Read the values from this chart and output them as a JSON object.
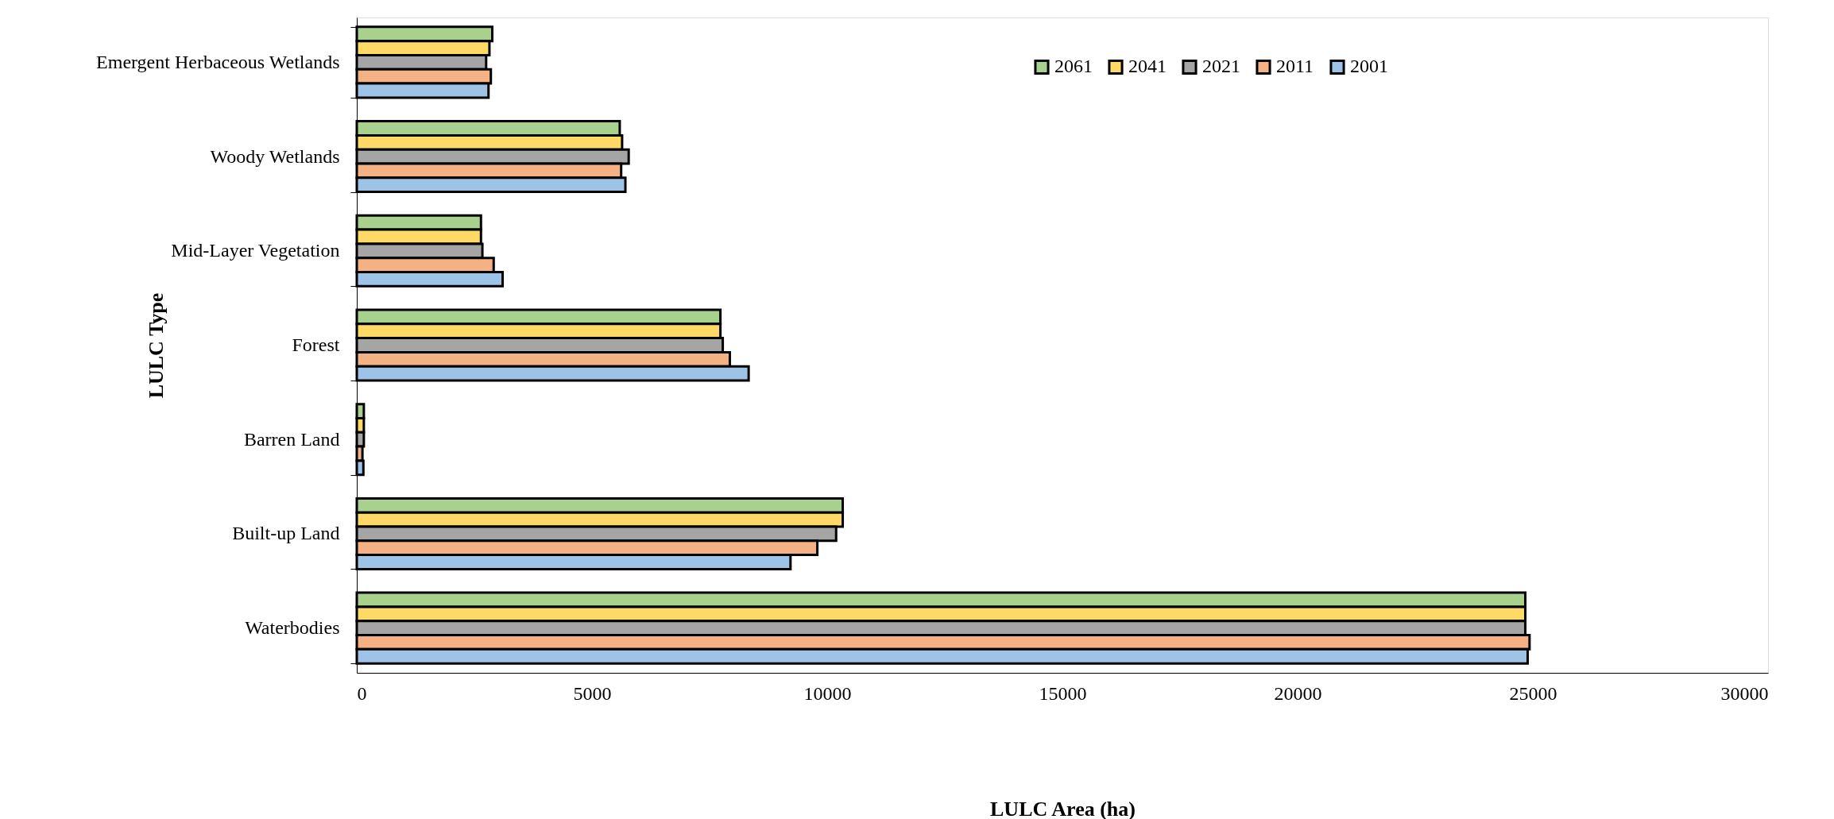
{
  "chart_data": {
    "type": "bar",
    "orientation": "horizontal",
    "xlabel": "LULC Area (ha)",
    "ylabel": "LULC Type",
    "categories": [
      "Emergent Herbaceous Wetlands",
      "Woody Wetlands",
      "Mid-Layer Vegetation",
      "Forest",
      "Barren Land",
      "Built-up Land",
      "Waterbodies"
    ],
    "series": [
      {
        "name": "2061",
        "color": "#a9d18e",
        "values": [
          2880,
          5590,
          2640,
          7730,
          150,
          10330,
          24840
        ]
      },
      {
        "name": "2041",
        "color": "#ffd966",
        "values": [
          2820,
          5640,
          2640,
          7730,
          150,
          10330,
          24840
        ]
      },
      {
        "name": "2021",
        "color": "#a5a5a5",
        "values": [
          2750,
          5780,
          2670,
          7780,
          150,
          10190,
          24840
        ]
      },
      {
        "name": "2011",
        "color": "#f4b183",
        "values": [
          2850,
          5620,
          2910,
          7930,
          120,
          9790,
          24930
        ]
      },
      {
        "name": "2001",
        "color": "#9dc3e6",
        "values": [
          2800,
          5710,
          3100,
          8330,
          140,
          9220,
          24890
        ]
      }
    ],
    "xlim": [
      0,
      30000
    ],
    "xticks": [
      0,
      5000,
      10000,
      15000,
      20000,
      25000,
      30000
    ],
    "grid": false,
    "legend": "top right"
  }
}
